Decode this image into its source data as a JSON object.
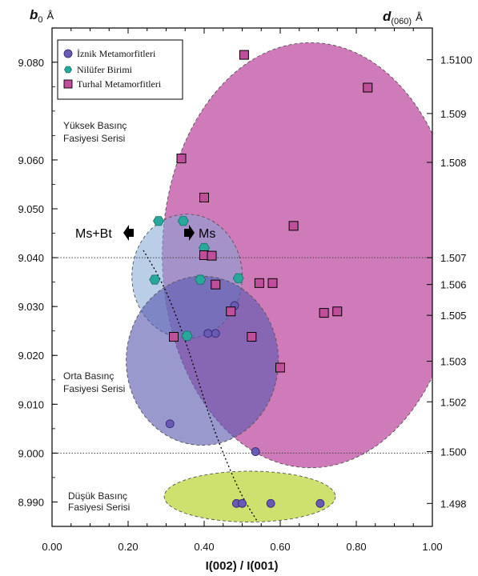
{
  "chart_data": {
    "type": "scatter",
    "x_axis": {
      "title": "I(002) / I(001)",
      "range": [
        0.0,
        1.0
      ],
      "ticks": [
        "0.00",
        "0.20",
        "0.40",
        "0.60",
        "0.80",
        "1.00"
      ]
    },
    "y_axis_left": {
      "title_main": "b",
      "title_sub": "0",
      "unit": "Å",
      "range": [
        8.985,
        9.087
      ],
      "ticks": [
        "9.080",
        "9.060",
        "9.050",
        "9.040",
        "9.030",
        "9.020",
        "9.010",
        "9.000",
        "8.990"
      ]
    },
    "y_axis_right": {
      "title_main": "d",
      "title_sub": "(060)",
      "unit": "Å",
      "ticks": [
        "1.5100",
        "1.509",
        "1.508",
        "1.507",
        "1.506",
        "1.505",
        "1.503",
        "1.502",
        "1.500",
        "1.498"
      ]
    },
    "reference_lines": [
      9.04,
      9.0
    ],
    "zones": [
      {
        "label_line1": "Yüksek Basınç",
        "label_line2": "Fasiyesi Serisi"
      },
      {
        "label_line1": "Orta Basınç",
        "label_line2": "Fasiyesi Serisi"
      },
      {
        "label_line1": "Düşük Basınç",
        "label_line2": "Fasiyesi Serisi"
      }
    ],
    "arrows": {
      "left_label": "Ms+Bt",
      "right_label": "Ms"
    },
    "series": [
      {
        "name": "İznik Metamorfitleri",
        "marker": "circle",
        "color": "#6a5ab4",
        "points": [
          [
            0.31,
            9.006
          ],
          [
            0.41,
            9.0245
          ],
          [
            0.43,
            9.0245
          ],
          [
            0.48,
            9.0302
          ],
          [
            0.535,
            9.0003
          ],
          [
            0.485,
            8.9897
          ],
          [
            0.5,
            8.9897
          ],
          [
            0.575,
            8.9897
          ],
          [
            0.705,
            8.9897
          ]
        ]
      },
      {
        "name": "Nilüfer Birimi",
        "marker": "hexagon",
        "color": "#27a89a",
        "points": [
          [
            0.28,
            9.0475
          ],
          [
            0.345,
            9.0475
          ],
          [
            0.4,
            9.042
          ],
          [
            0.27,
            9.0355
          ],
          [
            0.39,
            9.0355
          ],
          [
            0.49,
            9.0358
          ],
          [
            0.355,
            9.024
          ]
        ]
      },
      {
        "name": "Turhal Metamorfitleri",
        "marker": "square",
        "color": "#c04f9b",
        "points": [
          [
            0.505,
            9.0815
          ],
          [
            0.83,
            9.0748
          ],
          [
            0.34,
            9.0603
          ],
          [
            0.4,
            9.0523
          ],
          [
            0.635,
            9.0465
          ],
          [
            0.4,
            9.0405
          ],
          [
            0.42,
            9.0404
          ],
          [
            0.43,
            9.0345
          ],
          [
            0.545,
            9.0348
          ],
          [
            0.58,
            9.0348
          ],
          [
            0.47,
            9.029
          ],
          [
            0.715,
            9.0287
          ],
          [
            0.75,
            9.029
          ],
          [
            0.32,
            9.0238
          ],
          [
            0.525,
            9.0238
          ],
          [
            0.6,
            9.0175
          ]
        ]
      }
    ],
    "ellipses": [
      {
        "cx": 0.68,
        "cy": 9.0405,
        "rx": 0.39,
        "ry": 0.0435,
        "color": "#b83d98",
        "opacity": 0.68
      },
      {
        "cx": 0.355,
        "cy": 9.0362,
        "rx": 0.145,
        "ry": 0.0127,
        "color": "#83a6d6",
        "opacity": 0.55
      },
      {
        "cx": 0.395,
        "cy": 9.0189,
        "rx": 0.2,
        "ry": 0.0173,
        "color": "#5a5bb0",
        "opacity": 0.62
      },
      {
        "cx": 0.52,
        "cy": 8.9911,
        "rx": 0.225,
        "ry": 0.0052,
        "color": "#c5dc55",
        "opacity": 0.85
      }
    ],
    "trend_curve": [
      [
        0.24,
        9.0415
      ],
      [
        0.29,
        9.035
      ],
      [
        0.34,
        9.0255
      ],
      [
        0.38,
        9.016
      ],
      [
        0.42,
        9.006
      ],
      [
        0.46,
        8.998
      ],
      [
        0.5,
        8.991
      ],
      [
        0.54,
        8.986
      ]
    ]
  }
}
